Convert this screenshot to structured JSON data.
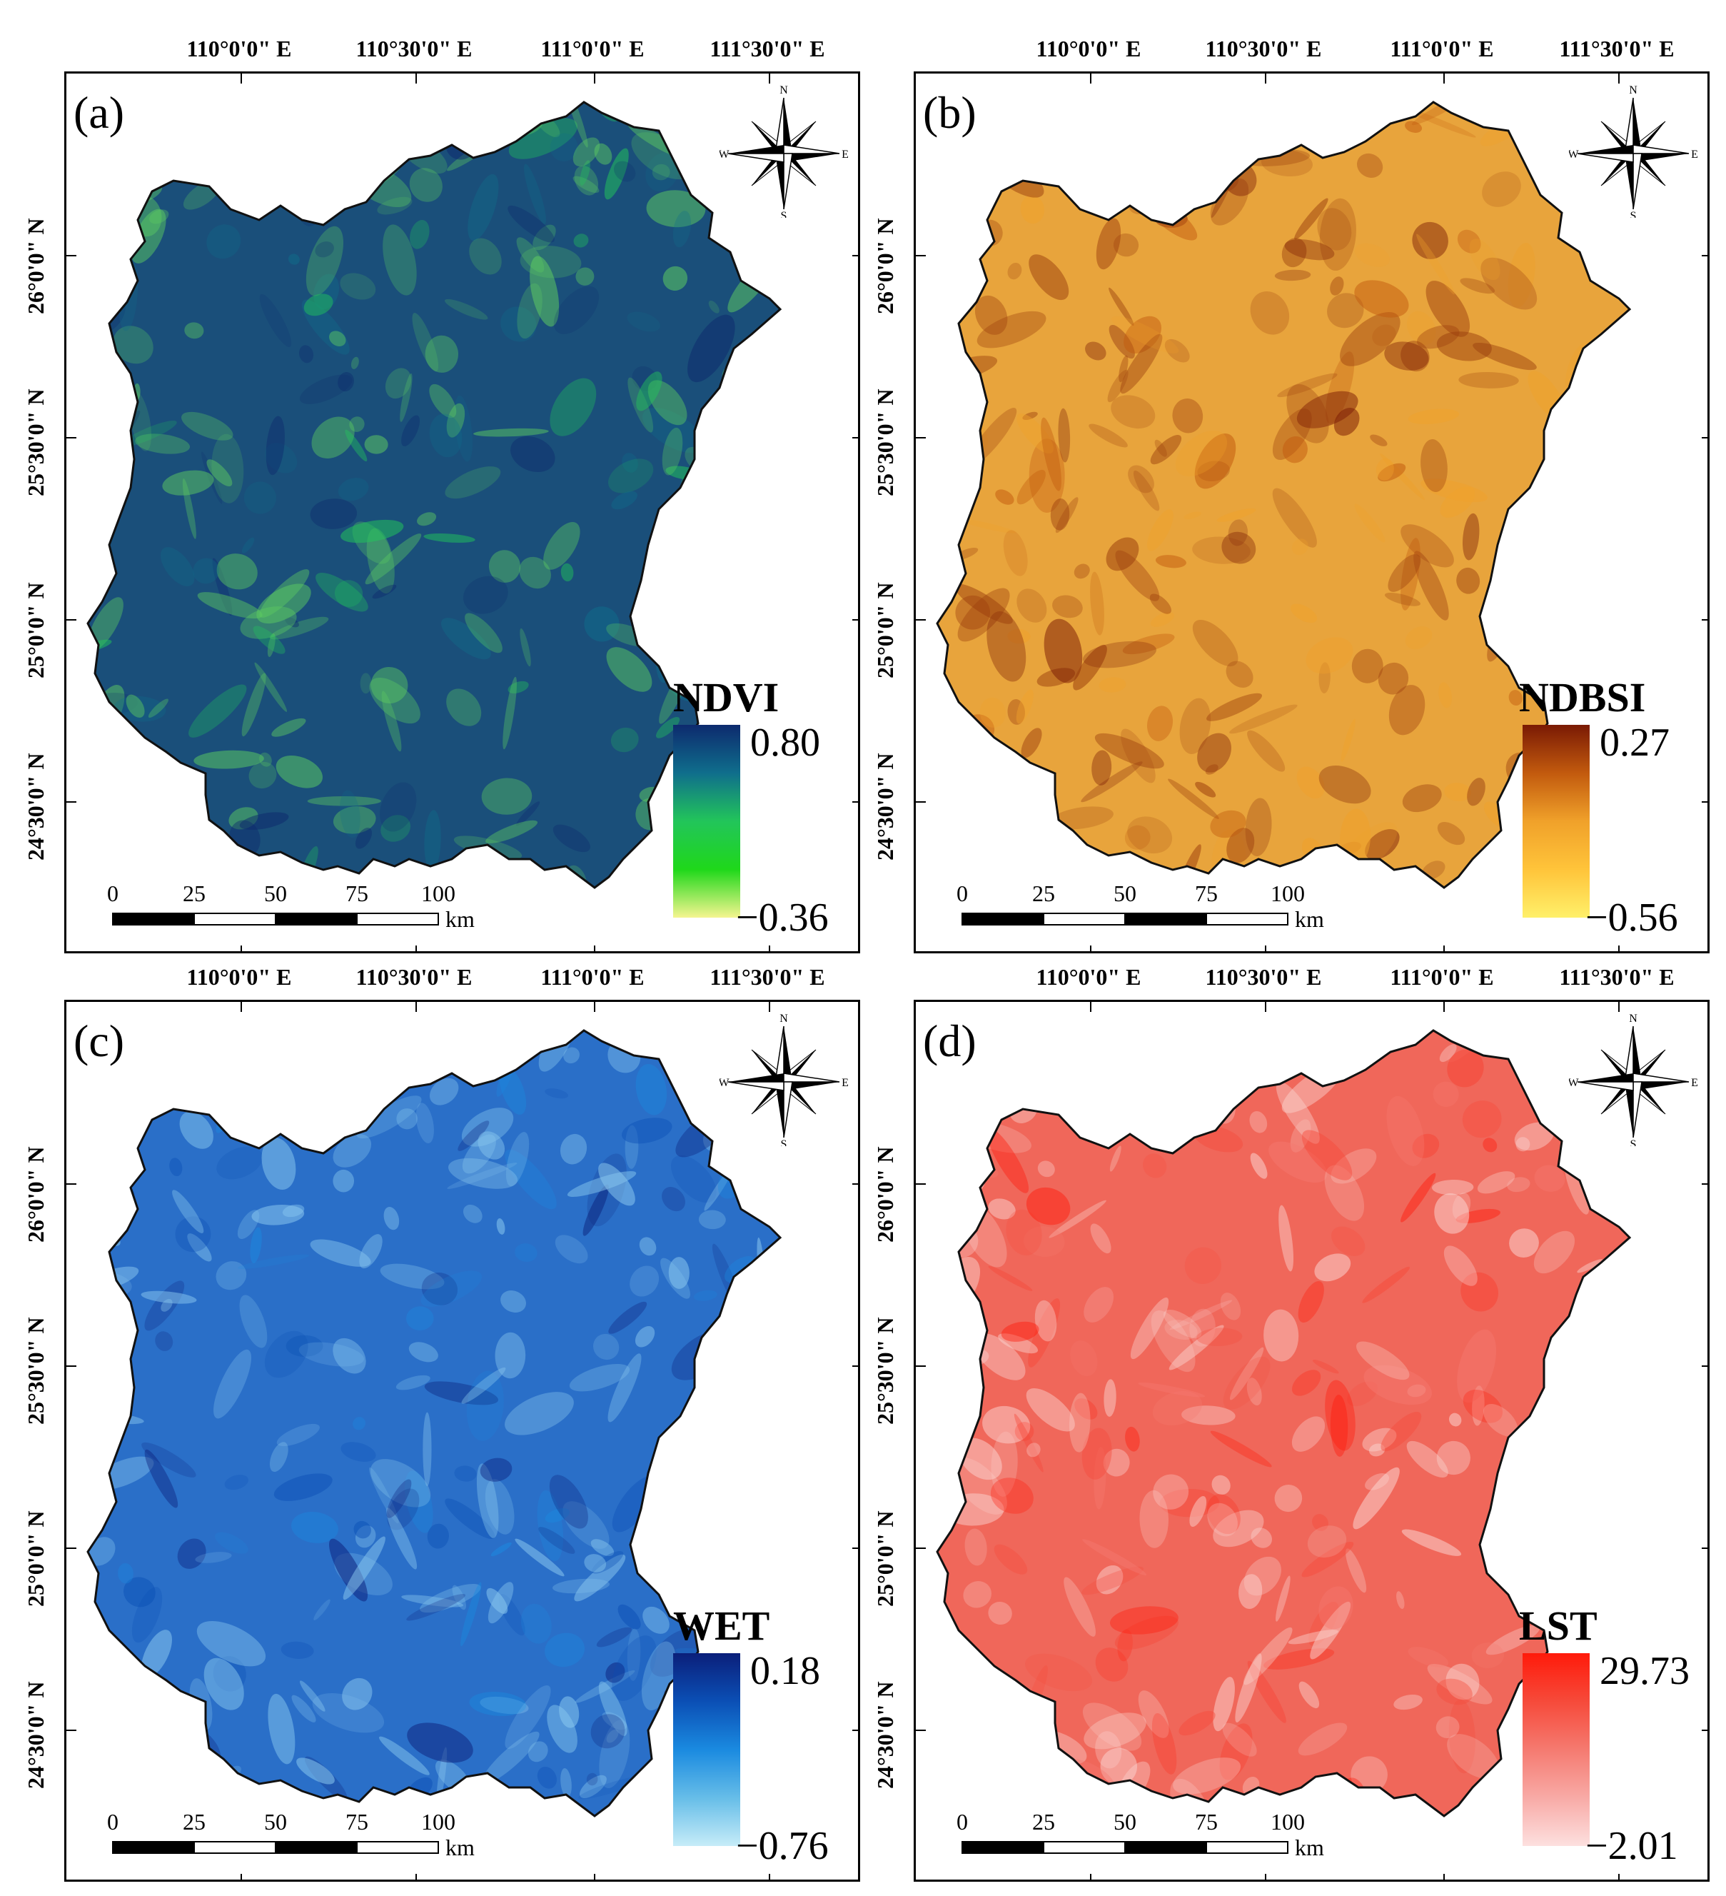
{
  "longitude_labels": [
    "110°0'0\" E",
    "110°30'0\" E",
    "111°0'0\" E",
    "111°30'0\" E"
  ],
  "latitude_labels": [
    "26°0'0\" N",
    "25°30'0\" N",
    "25°0'0\" N",
    "24°30'0\" N"
  ],
  "compass": {
    "n": "N",
    "s": "S",
    "e": "E",
    "w": "W"
  },
  "scale": {
    "ticks": [
      "0",
      "25",
      "50",
      "75",
      "100"
    ],
    "unit": "km"
  },
  "panels": [
    {
      "letter": "(a)",
      "title": "NDVI",
      "max": "0.80",
      "min": "−0.36",
      "colors": [
        "#0d2a6e",
        "#0f6e8c",
        "#22c55a",
        "#1fd81a",
        "#f5f590"
      ],
      "map_fill": "#1a4f7a",
      "map_accent": "#5fcf60"
    },
    {
      "letter": "(b)",
      "title": "NDBSI",
      "max": "0.27",
      "min": "−0.56",
      "colors": [
        "#7a1a04",
        "#c25a0e",
        "#f0a12a",
        "#ffc43a",
        "#fff06a"
      ],
      "map_fill": "#e8a43c",
      "map_accent": "#9a3d0c"
    },
    {
      "letter": "(c)",
      "title": "WET",
      "max": "0.18",
      "min": "−0.76",
      "colors": [
        "#0b1f7a",
        "#0b4fb5",
        "#1a8ae0",
        "#66bde8",
        "#c6ecf8"
      ],
      "map_fill": "#2a6fc8",
      "map_accent": "#8ccaf0"
    },
    {
      "letter": "(d)",
      "title": "LST",
      "max": "29.73",
      "min": "−2.01",
      "colors": [
        "#ff1a0a",
        "#f64a3a",
        "#f57a70",
        "#f8aaa6",
        "#fde0df"
      ],
      "map_fill": "#f0675a",
      "map_accent": "#fbd6d2"
    }
  ]
}
